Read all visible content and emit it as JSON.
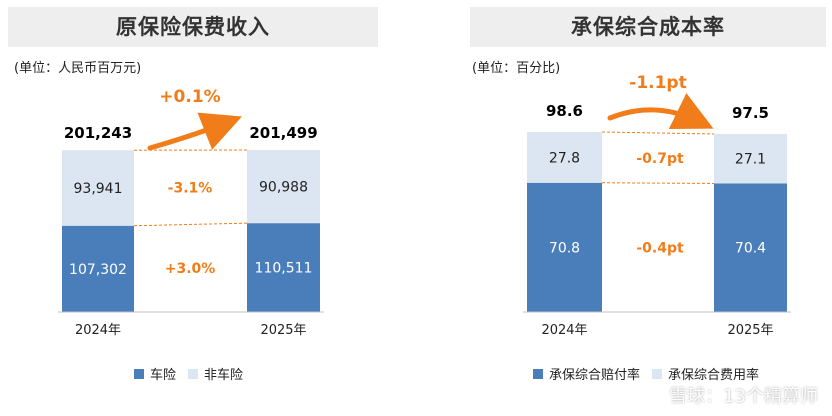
{
  "colors": {
    "primary": "#4a7ebb",
    "secondary": "#dce6f2",
    "accent": "#f07d1a",
    "text": "#222222"
  },
  "left_panel": {
    "title": "原保险保费收入",
    "unit": "(单位：人民币百万元)",
    "legend": [
      "车险",
      "非车险"
    ],
    "total_change": "+0.1%",
    "segment_changes": [
      "+3.0%",
      "-3.1%"
    ]
  },
  "right_panel": {
    "title": "承保综合成本率",
    "unit": "(单位：百分比)",
    "legend": [
      "承保综合赔付率",
      "承保综合费用率"
    ],
    "total_change": "-1.1pt",
    "segment_changes": [
      "-0.4pt",
      "-0.7pt"
    ]
  },
  "watermark": "雪球：13个精算师",
  "chart_data": [
    {
      "type": "bar",
      "stacked": true,
      "title": "原保险保费收入",
      "categories": [
        "2024年",
        "2025年"
      ],
      "series": [
        {
          "name": "车险",
          "values": [
            107302,
            110511
          ],
          "labels": [
            "107,302",
            "110,511"
          ]
        },
        {
          "name": "非车险",
          "values": [
            93941,
            90988
          ],
          "labels": [
            "93,941",
            "90,988"
          ]
        }
      ],
      "totals": [
        201243,
        201499
      ],
      "total_labels": [
        "201,243",
        "201,499"
      ],
      "ylim": [
        0,
        201499
      ]
    },
    {
      "type": "bar",
      "stacked": true,
      "title": "承保综合成本率",
      "categories": [
        "2024年",
        "2025年"
      ],
      "series": [
        {
          "name": "承保综合赔付率",
          "values": [
            70.8,
            70.4
          ],
          "labels": [
            "70.8",
            "70.4"
          ]
        },
        {
          "name": "承保综合费用率",
          "values": [
            27.8,
            27.1
          ],
          "labels": [
            "27.8",
            "27.1"
          ]
        }
      ],
      "totals": [
        98.6,
        97.5
      ],
      "total_labels": [
        "98.6",
        "97.5"
      ],
      "ylim": [
        0,
        98.6
      ]
    }
  ]
}
